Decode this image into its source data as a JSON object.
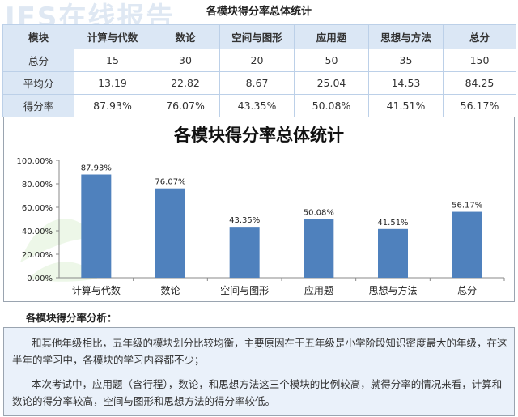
{
  "watermark": "IFS在线报告",
  "table": {
    "caption": "各模块得分率总体统计",
    "headers": [
      "模块",
      "计算与代数",
      "数论",
      "空间与图形",
      "应用题",
      "思想与方法",
      "总分"
    ],
    "rows": [
      {
        "label": "总分",
        "values": [
          "15",
          "30",
          "20",
          "50",
          "35",
          "150"
        ]
      },
      {
        "label": "平均分",
        "values": [
          "13.19",
          "22.82",
          "8.67",
          "25.04",
          "14.53",
          "84.25"
        ]
      },
      {
        "label": "得分率",
        "values": [
          "87.93%",
          "76.07%",
          "43.35%",
          "50.08%",
          "41.51%",
          "56.17%"
        ]
      }
    ]
  },
  "chart_data": {
    "type": "bar",
    "title": "各模块得分率总体统计",
    "categories": [
      "计算与代数",
      "数论",
      "空间与图形",
      "应用题",
      "思想与方法",
      "总分"
    ],
    "values": [
      87.93,
      76.07,
      43.35,
      50.08,
      41.51,
      56.17
    ],
    "data_labels": [
      "87.93%",
      "76.07%",
      "43.35%",
      "50.08%",
      "41.51%",
      "56.17%"
    ],
    "ylim": [
      0,
      100
    ],
    "yticks": [
      0,
      20,
      40,
      60,
      80,
      100
    ],
    "ytick_labels": [
      "0.00%",
      "20.00%",
      "40.00%",
      "60.00%",
      "80.00%",
      "100.00%"
    ],
    "grid": false,
    "bar_color": "#4f81bd"
  },
  "analysis": {
    "title": "各模块得分率分析：",
    "paragraphs": [
      "和其他年级相比，五年级的模块划分比较均衡，主要原因在于五年级是小学阶段知识密度最大的年级，在这半年的学习中，各模块的学习内容都不少；",
      "本次考试中，应用题（含行程），数论，和思想方法这三个模块的比例较高，就得分率的情况来看，计算和数论的得分率较高，空间与图形和思想方法的得分率较低。"
    ]
  }
}
